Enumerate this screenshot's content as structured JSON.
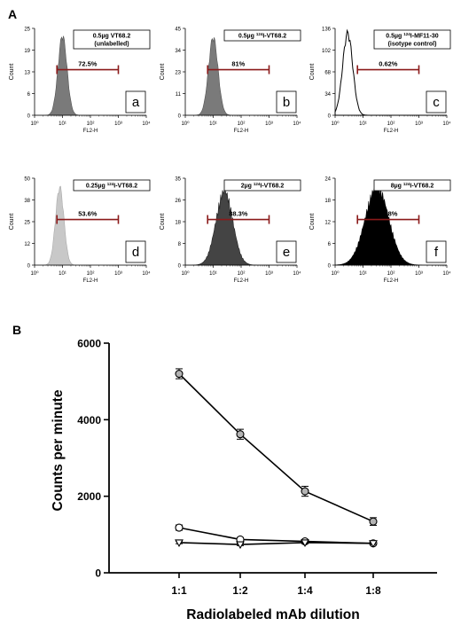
{
  "panel_labels": {
    "a": "A",
    "b": "B"
  },
  "chart_data": [
    {
      "type": "histogram",
      "panel": "a",
      "label_line1": "0.5µg VT68.2",
      "label_line2": "(unlabelled)",
      "sup": "",
      "gate": "72.5%",
      "fill": "#7a7a7a",
      "stroke": "#555555",
      "peak_log": 1.0,
      "peak_width": 0.16,
      "peak_height": 0.95,
      "gate_range": [
        0.8,
        3.0
      ],
      "xlabel": "FL2-H",
      "ylabel": "Count",
      "yticks": [
        "0",
        "6",
        "13",
        "19",
        "25"
      ],
      "xticks": [
        "10⁰",
        "10¹",
        "10²",
        "10³",
        "10⁴"
      ]
    },
    {
      "type": "histogram",
      "panel": "b",
      "label_line1": "0.5µg ",
      "sup": "124",
      "label_tail": "I-VT68.2",
      "label_line2": "",
      "gate": "81%",
      "fill": "#7a7a7a",
      "stroke": "#555555",
      "peak_log": 1.0,
      "peak_width": 0.17,
      "peak_height": 0.93,
      "gate_range": [
        0.8,
        3.0
      ],
      "xlabel": "FL2-H",
      "ylabel": "Count",
      "yticks": [
        "0",
        "11",
        "23",
        "34",
        "45"
      ],
      "xticks": [
        "10⁰",
        "10¹",
        "10²",
        "10³",
        "10⁴"
      ]
    },
    {
      "type": "histogram",
      "panel": "c",
      "label_line1": "0.5µg ",
      "sup": "124",
      "label_tail": "I-MF11-30",
      "label_line2": "(isotype control)",
      "gate": "0.62%",
      "fill": "none",
      "stroke": "#000000",
      "peak_log": 0.45,
      "peak_width": 0.18,
      "peak_height": 0.98,
      "gate_range": [
        0.8,
        3.0
      ],
      "xlabel": "FL2-H",
      "ylabel": "Count",
      "yticks": [
        "0",
        "34",
        "68",
        "102",
        "136"
      ],
      "xticks": [
        "10⁰",
        "10¹",
        "10²",
        "10³",
        "10⁴"
      ]
    },
    {
      "type": "histogram",
      "panel": "d",
      "label_line1": "0.25µg ",
      "sup": "124",
      "label_tail": "I-VT68.2",
      "label_line2": "",
      "gate": "53.6%",
      "fill": "#c8c8c8",
      "stroke": "#aaaaaa",
      "peak_log": 0.9,
      "peak_width": 0.15,
      "peak_height": 0.93,
      "gate_range": [
        0.8,
        3.0
      ],
      "xlabel": "FL2-H",
      "ylabel": "Count",
      "yticks": [
        "0",
        "12",
        "25",
        "38",
        "50"
      ],
      "xticks": [
        "10⁰",
        "10¹",
        "10²",
        "10³",
        "10⁴"
      ]
    },
    {
      "type": "histogram",
      "panel": "e",
      "label_line1": "2µg ",
      "sup": "124",
      "label_tail": "I-VT68.2",
      "label_line2": "",
      "gate": "88.3%",
      "fill": "#444444",
      "stroke": "#222222",
      "peak_log": 1.4,
      "peak_width": 0.3,
      "peak_height": 0.9,
      "gate_range": [
        0.8,
        3.0
      ],
      "xlabel": "FL2-H",
      "ylabel": "Count",
      "yticks": [
        "0",
        "8",
        "18",
        "26",
        "35"
      ],
      "xticks": [
        "10⁰",
        "10¹",
        "10²",
        "10³",
        "10⁴"
      ]
    },
    {
      "type": "histogram",
      "panel": "f",
      "label_line1": "8µg ",
      "sup": "124",
      "label_tail": "I-VT68.2",
      "label_line2": "",
      "gate": "85.8%",
      "fill": "#000000",
      "stroke": "#000000",
      "peak_log": 1.5,
      "peak_width": 0.42,
      "peak_height": 0.95,
      "gate_range": [
        0.8,
        3.0
      ],
      "xlabel": "FL2-H",
      "ylabel": "Count",
      "yticks": [
        "0",
        "6",
        "12",
        "18",
        "24"
      ],
      "xticks": [
        "10⁰",
        "10¹",
        "10²",
        "10³",
        "10⁴"
      ]
    },
    {
      "type": "line",
      "panel": "B",
      "xlabel": "Radiolabeled mAb dilution",
      "ylabel": "Counts per minute",
      "categories": [
        "1:1",
        "1:2",
        "1:4",
        "1:8"
      ],
      "ylim": [
        0,
        6000
      ],
      "yticks": [
        0,
        2000,
        4000,
        6000
      ],
      "series": [
        {
          "marker": "circle-filled",
          "values": [
            5200,
            3620,
            2130,
            1340
          ],
          "errors": [
            130,
            130,
            130,
            100
          ]
        },
        {
          "marker": "circle-open",
          "values": [
            1180,
            870,
            820,
            770
          ],
          "errors": [
            70,
            50,
            50,
            40
          ]
        },
        {
          "marker": "triangle-down",
          "values": [
            790,
            740,
            790,
            770
          ],
          "errors": [
            30,
            30,
            30,
            30
          ]
        }
      ]
    }
  ],
  "colors": {
    "gate_bar": "#8b1a1a",
    "axis": "#000000",
    "marker_fill": "#b4b4b4"
  }
}
